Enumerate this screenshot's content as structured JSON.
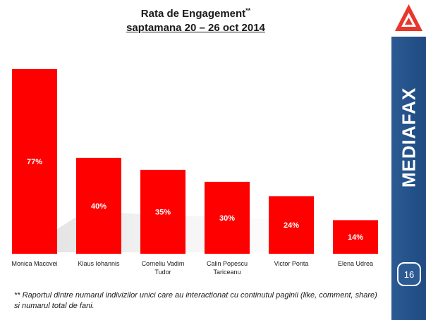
{
  "slide": {
    "title": "Rata de Engagement",
    "title_marker": "**",
    "subtitle": "saptamana 20 – 26 oct 2014",
    "footnote": "** Raportul dintre numarul indivizilor unici care au interactionat cu continutul  paginii (like, comment, share) si numarul total de fani.",
    "brand": "MEDIAFAX",
    "page_number": "16"
  },
  "colors": {
    "bar": "#ff0000",
    "sidebar": "#2c5a93",
    "logo_red": "#e8372a"
  },
  "icons": {
    "logo": "mediafax-triangle-logo"
  },
  "chart_data": {
    "type": "bar",
    "categories": [
      [
        "Monica Macovei"
      ],
      [
        "Klaus Iohannis"
      ],
      [
        "Corneliu Vadim",
        "Tudor"
      ],
      [
        "Calin Popescu",
        "Tariceanu"
      ],
      [
        "Victor Ponta"
      ],
      [
        "Elena Udrea"
      ]
    ],
    "values": [
      77,
      40,
      35,
      30,
      24,
      14
    ],
    "data_labels": [
      "77%",
      "40%",
      "35%",
      "30%",
      "24%",
      "14%"
    ],
    "unit": "%",
    "ylim": [
      0,
      77
    ],
    "grid": false,
    "legend": "none"
  }
}
